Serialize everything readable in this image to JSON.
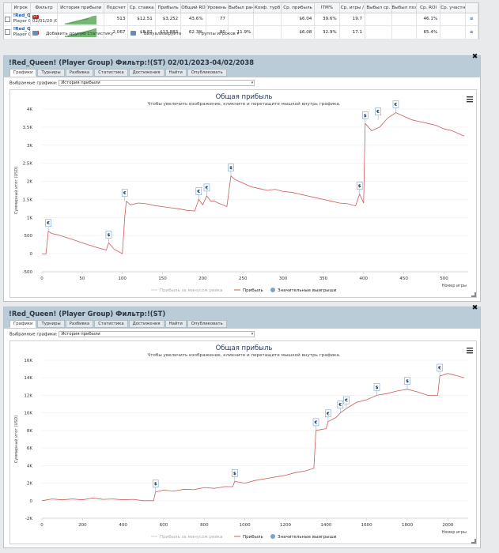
{
  "stats_table": {
    "columns": [
      "",
      "Игрок",
      "Фильтр",
      "История прибыли",
      "Подсчет",
      "Ср. ставка",
      "Прибыль",
      "Общий RO",
      "Уровень",
      "Выбыл ран",
      "Коэф. турб",
      "Ср. прибыль",
      "ITM%",
      "Ср. игры /",
      "Выбыл ср.",
      "Выбыл поз",
      "Ср. ROI",
      "Ср. участн",
      ""
    ],
    "rows": [
      {
        "player": "!Red_Qu",
        "player_sub": "Player G",
        "filter_badge": "ST",
        "filter_dates": "02/01/20 /02/2038",
        "count": "513",
        "avg_stake": "$12.51",
        "profit": "$3,252",
        "total_roi": "43.6%",
        "level": "77",
        "early_exit": "",
        "turbo": "",
        "avg_profit": "$6.04",
        "itm": "39.6%",
        "avg_games": "19.7",
        "exit_avg": "",
        "exit_pos": "",
        "avg_roi": "46.1%",
        "avg_part": "",
        "option": "≡"
      },
      {
        "player": "!Red_Qu",
        "player_sub": "Player G",
        "filter_badge": "ST",
        "filter_dates": "",
        "count": "2,067",
        "avg_stake": "$8.82",
        "profit": "$13,883",
        "total_roi": "62.3%",
        "level": "80",
        "early_exit": "11.9%",
        "turbo": "",
        "avg_profit": "$6.08",
        "itm": "32.9%",
        "avg_games": "17.1",
        "exit_avg": "",
        "exit_pos": "",
        "avg_roi": "65.4%",
        "avg_part": "",
        "option": "≡"
      }
    ],
    "footer": {
      "add": "Добавить другую статистику",
      "visualize": "Визуализируйте",
      "groups": "Группы игроков ▾"
    }
  },
  "tabs": [
    "Графики",
    "Турниры",
    "Разбивка",
    "Статистика",
    "Достижения",
    "Найти",
    "Опубликовать"
  ],
  "panel1": {
    "title": "!Red_Queen! (Player Group) Фильтр:!(ST) 02/01/2023-04/02/2038",
    "selected_label": "Выбранные графики:",
    "selected_value": "История прибыли"
  },
  "panel2": {
    "title": "!Red_Queen! (Player Group) Фильтр:!(ST)",
    "selected_label": "Выбранные графики:",
    "selected_value": "История прибыли"
  },
  "chart_data": [
    {
      "type": "line",
      "title": "Общая прибыль",
      "subtitle": "Чтобы увеличить изображение, кликните и перетащите мышкой внутрь графика.",
      "xlabel": "Номер игры",
      "ylabel": "Суммарный итог (USD)",
      "xlim": [
        0,
        530
      ],
      "ylim": [
        -500,
        4000
      ],
      "xticks": [
        0,
        50,
        100,
        150,
        200,
        250,
        300,
        350,
        400,
        450,
        500
      ],
      "yticks": [
        -500,
        0,
        500,
        1000,
        1500,
        2000,
        2500,
        3000,
        3500,
        4000
      ],
      "ytick_labels": [
        "-500",
        "0",
        "500",
        "1K",
        "1.5K",
        "2K",
        "2.5K",
        "3K",
        "3.5K",
        "4K"
      ],
      "legend": [
        "Прибыль за минусом рейка",
        "Прибыль",
        "Значительные выигрыши"
      ],
      "series": [
        {
          "name": "Прибыль",
          "x": [
            0,
            5,
            8,
            12,
            20,
            30,
            40,
            50,
            60,
            70,
            80,
            83,
            90,
            100,
            103,
            105,
            110,
            120,
            130,
            140,
            150,
            160,
            170,
            180,
            190,
            195,
            200,
            205,
            210,
            215,
            220,
            225,
            230,
            235,
            240,
            250,
            260,
            270,
            280,
            290,
            300,
            310,
            320,
            330,
            340,
            350,
            360,
            370,
            380,
            390,
            395,
            400,
            402,
            410,
            420,
            430,
            440,
            450,
            460,
            470,
            480,
            490,
            500,
            510,
            520,
            525
          ],
          "y": [
            0,
            -10,
            620,
            560,
            520,
            450,
            380,
            300,
            230,
            160,
            100,
            300,
            120,
            0,
            1000,
            1450,
            1350,
            1400,
            1380,
            1330,
            1300,
            1270,
            1240,
            1200,
            1180,
            1500,
            1350,
            1600,
            1450,
            1450,
            1390,
            1350,
            1300,
            2150,
            2050,
            1950,
            1850,
            1800,
            1750,
            1780,
            1720,
            1700,
            1650,
            1600,
            1550,
            1500,
            1450,
            1400,
            1380,
            1320,
            1650,
            1400,
            3600,
            3400,
            3500,
            3750,
            3900,
            3800,
            3700,
            3650,
            3600,
            3550,
            3450,
            3400,
            3300,
            3250
          ]
        }
      ],
      "big_wins": [
        {
          "x": 8,
          "y": 620,
          "symbol": "€"
        },
        {
          "x": 83,
          "y": 300,
          "symbol": "$"
        },
        {
          "x": 103,
          "y": 1450,
          "symbol": "€"
        },
        {
          "x": 195,
          "y": 1500,
          "symbol": "€"
        },
        {
          "x": 205,
          "y": 1600,
          "symbol": "€"
        },
        {
          "x": 235,
          "y": 2150,
          "symbol": "$"
        },
        {
          "x": 395,
          "y": 1650,
          "symbol": "$"
        },
        {
          "x": 402,
          "y": 3600,
          "symbol": "$"
        },
        {
          "x": 418,
          "y": 3700,
          "symbol": "€"
        },
        {
          "x": 440,
          "y": 3900,
          "symbol": "€"
        }
      ]
    },
    {
      "type": "line",
      "title": "Общая прибыль",
      "subtitle": "Чтобы увеличить изображение, кликните и перетащите мышкой внутрь графика.",
      "xlabel": "Номер игры",
      "ylabel": "Суммарный итог (USD)",
      "xlim": [
        0,
        2100
      ],
      "ylim": [
        -2000,
        16000
      ],
      "xticks": [
        0,
        200,
        400,
        600,
        800,
        1000,
        1200,
        1400,
        1600,
        1800,
        2000
      ],
      "yticks": [
        -2000,
        0,
        2000,
        4000,
        6000,
        8000,
        10000,
        12000,
        14000,
        16000
      ],
      "ytick_labels": [
        "-2K",
        "0",
        "2K",
        "4K",
        "6K",
        "8K",
        "10K",
        "12K",
        "14K",
        "16K"
      ],
      "legend": [
        "Прибыль за минусом рейка",
        "Прибыль",
        "Значительные выигрыши"
      ],
      "series": [
        {
          "name": "Прибыль",
          "x": [
            0,
            50,
            100,
            150,
            200,
            250,
            300,
            350,
            400,
            450,
            500,
            550,
            560,
            600,
            650,
            700,
            750,
            800,
            850,
            900,
            940,
            950,
            1000,
            1050,
            1100,
            1150,
            1200,
            1250,
            1300,
            1340,
            1350,
            1400,
            1410,
            1450,
            1470,
            1500,
            1550,
            1600,
            1650,
            1700,
            1750,
            1800,
            1850,
            1900,
            1950,
            1960,
            2000,
            2050,
            2080
          ],
          "y": [
            0,
            200,
            100,
            200,
            100,
            300,
            150,
            200,
            100,
            150,
            0,
            0,
            1000,
            1200,
            1100,
            1300,
            1250,
            1500,
            1400,
            1600,
            1600,
            2200,
            2000,
            2300,
            2500,
            2700,
            2900,
            3200,
            3400,
            3700,
            8000,
            8200,
            9000,
            9500,
            10000,
            10500,
            11200,
            11500,
            12000,
            12200,
            12500,
            12700,
            12400,
            12000,
            12000,
            14200,
            14500,
            14200,
            14000
          ]
        }
      ],
      "big_wins": [
        {
          "x": 560,
          "y": 1000,
          "symbol": "$"
        },
        {
          "x": 950,
          "y": 2200,
          "symbol": "$"
        },
        {
          "x": 1350,
          "y": 8000,
          "symbol": "€"
        },
        {
          "x": 1410,
          "y": 9000,
          "symbol": "€"
        },
        {
          "x": 1470,
          "y": 10000,
          "symbol": "€"
        },
        {
          "x": 1500,
          "y": 10500,
          "symbol": "€"
        },
        {
          "x": 1650,
          "y": 12000,
          "symbol": "$"
        },
        {
          "x": 1800,
          "y": 12700,
          "symbol": "$"
        },
        {
          "x": 1960,
          "y": 14200,
          "symbol": "€"
        }
      ]
    }
  ]
}
